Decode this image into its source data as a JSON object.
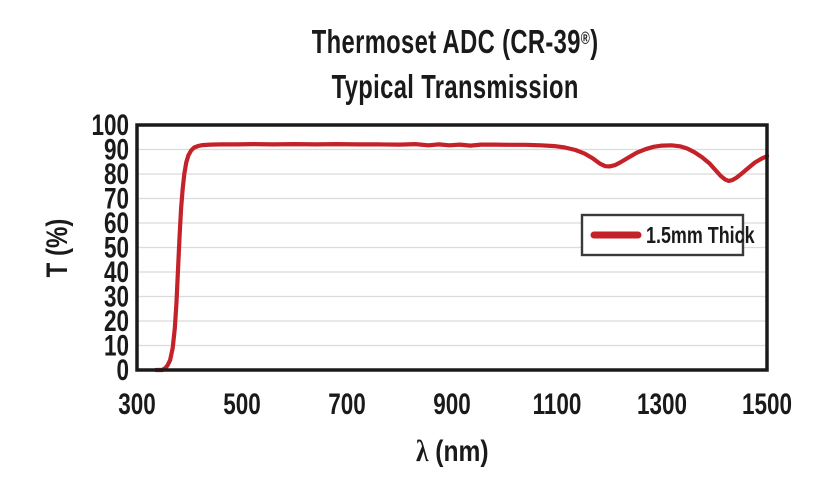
{
  "figure": {
    "kind": "transmission-spectrum-figure"
  },
  "colors": {
    "curve_red": "#C42229",
    "grid": "#DBDBDB",
    "frame": "#1A1A1A",
    "legend_border": "#3A3A3A",
    "text": "#1A1A1A",
    "background": "#FFFFFF"
  },
  "chart_data": {
    "type": "line",
    "title": "Thermoset ADC (CR-39®)",
    "title_parts": {
      "pre": "Thermoset ADC (CR-39",
      "reg": "®",
      "post": ")"
    },
    "subtitle": "Typical Transmission",
    "xlabel": "λ (nm)",
    "xlabel_parts": {
      "symbol": "λ",
      "unit": "(nm)"
    },
    "ylabel": "T (%)",
    "xlim": [
      300,
      1500
    ],
    "ylim": [
      0,
      100
    ],
    "x_ticks": [
      300,
      500,
      700,
      900,
      1100,
      1300,
      1500
    ],
    "y_ticks": [
      0,
      10,
      20,
      30,
      40,
      50,
      60,
      70,
      80,
      90,
      100
    ],
    "grid": "horizontal-only",
    "legend": {
      "position": "center-right",
      "border": true,
      "entries": [
        {
          "label": "1.5mm Thick",
          "color": "#C42229"
        }
      ]
    },
    "series": [
      {
        "name": "1.5mm Thick",
        "color": "#C42229",
        "stroke_width": 4.2,
        "points": [
          [
            336,
            0
          ],
          [
            348,
            0
          ],
          [
            353,
            0.6
          ],
          [
            358,
            1.8
          ],
          [
            363,
            4
          ],
          [
            368,
            9
          ],
          [
            372,
            17
          ],
          [
            375,
            27
          ],
          [
            378,
            40
          ],
          [
            381,
            54
          ],
          [
            384,
            66
          ],
          [
            387,
            74
          ],
          [
            390,
            80
          ],
          [
            394,
            84.8
          ],
          [
            398,
            87.6
          ],
          [
            403,
            89.6
          ],
          [
            409,
            90.8
          ],
          [
            416,
            91.4
          ],
          [
            425,
            91.8
          ],
          [
            440,
            92.0
          ],
          [
            460,
            92.1
          ],
          [
            490,
            92.1
          ],
          [
            520,
            92.2
          ],
          [
            560,
            92.1
          ],
          [
            600,
            92.2
          ],
          [
            640,
            92.1
          ],
          [
            680,
            92.2
          ],
          [
            720,
            92.1
          ],
          [
            760,
            92.1
          ],
          [
            800,
            92.0
          ],
          [
            830,
            92.2
          ],
          [
            855,
            91.7
          ],
          [
            875,
            92.1
          ],
          [
            895,
            91.7
          ],
          [
            915,
            92.0
          ],
          [
            935,
            91.6
          ],
          [
            955,
            92.0
          ],
          [
            980,
            92.0
          ],
          [
            1010,
            91.9
          ],
          [
            1040,
            91.9
          ],
          [
            1070,
            91.7
          ],
          [
            1095,
            91.4
          ],
          [
            1115,
            90.8
          ],
          [
            1135,
            89.8
          ],
          [
            1152,
            88.4
          ],
          [
            1168,
            86.4
          ],
          [
            1182,
            84.2
          ],
          [
            1192,
            83.2
          ],
          [
            1200,
            83.1
          ],
          [
            1210,
            83.6
          ],
          [
            1222,
            84.9
          ],
          [
            1236,
            86.7
          ],
          [
            1252,
            88.7
          ],
          [
            1268,
            90.1
          ],
          [
            1284,
            91.1
          ],
          [
            1300,
            91.6
          ],
          [
            1318,
            91.7
          ],
          [
            1334,
            91.3
          ],
          [
            1348,
            90.4
          ],
          [
            1362,
            88.9
          ],
          [
            1376,
            86.9
          ],
          [
            1390,
            84.4
          ],
          [
            1402,
            81.6
          ],
          [
            1412,
            79.2
          ],
          [
            1420,
            77.8
          ],
          [
            1427,
            77.2
          ],
          [
            1434,
            77.5
          ],
          [
            1442,
            78.5
          ],
          [
            1452,
            80.2
          ],
          [
            1464,
            82.4
          ],
          [
            1477,
            84.7
          ],
          [
            1489,
            86.2
          ],
          [
            1500,
            87.3
          ]
        ]
      }
    ]
  }
}
